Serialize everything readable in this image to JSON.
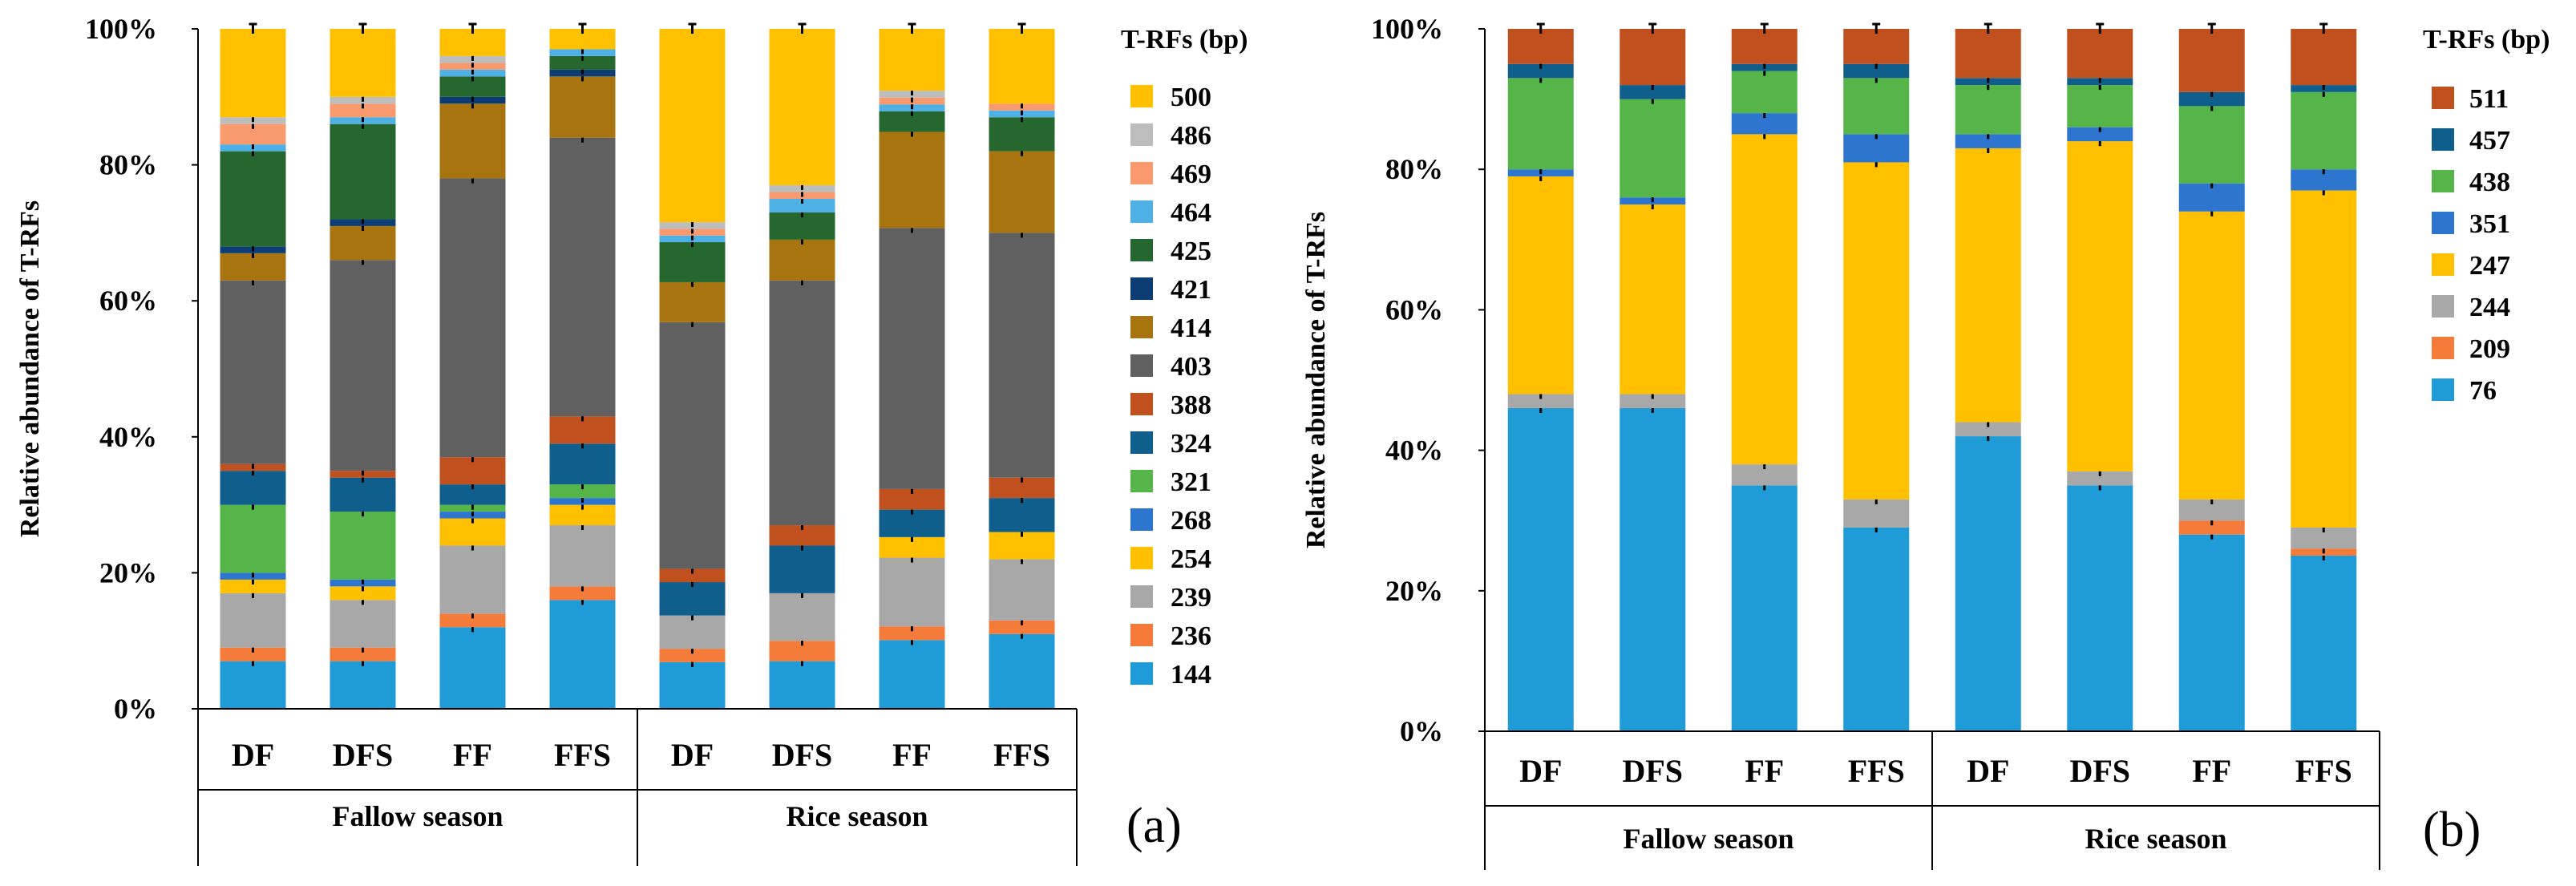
{
  "chart_data": [
    {
      "type": "stacked-bar",
      "panel_label": "(a)",
      "ylabel": "Relative abundance of T-RFs",
      "ytick_labels": [
        "0%",
        "20%",
        "40%",
        "60%",
        "80%",
        "100%"
      ],
      "ylim": [
        0,
        100
      ],
      "legend_title": "T-RFs (bp)",
      "categories": [
        "DF",
        "DFS",
        "FF",
        "FFS",
        "DF",
        "DFS",
        "FF",
        "FFS"
      ],
      "groups": [
        {
          "label": "Fallow season",
          "span": [
            0,
            3
          ]
        },
        {
          "label": "Rice season",
          "span": [
            4,
            7
          ]
        }
      ],
      "series": [
        {
          "name": "144",
          "color": "#1f9bd7",
          "values": [
            7,
            7,
            12,
            16,
            7,
            7,
            10,
            11
          ]
        },
        {
          "name": "236",
          "color": "#f47b3a",
          "values": [
            2,
            2,
            2,
            2,
            2,
            3,
            2,
            2
          ]
        },
        {
          "name": "239",
          "color": "#a8a8a8",
          "values": [
            8,
            7,
            10,
            9,
            5,
            7,
            10,
            9
          ]
        },
        {
          "name": "254",
          "color": "#ffc000",
          "values": [
            2,
            2,
            4,
            3,
            0,
            0,
            3,
            4
          ]
        },
        {
          "name": "268",
          "color": "#2e75d0",
          "values": [
            1,
            1,
            1,
            1,
            0,
            0,
            0,
            0
          ]
        },
        {
          "name": "321",
          "color": "#55b548",
          "values": [
            10,
            10,
            1,
            2,
            0,
            0,
            0,
            0
          ]
        },
        {
          "name": "324",
          "color": "#0f5e8c",
          "values": [
            5,
            5,
            3,
            6,
            5,
            7,
            4,
            5
          ]
        },
        {
          "name": "388",
          "color": "#c0501e",
          "values": [
            1,
            1,
            4,
            4,
            2,
            3,
            3,
            3
          ]
        },
        {
          "name": "403",
          "color": "#606060",
          "values": [
            27,
            31,
            41,
            41,
            37,
            36,
            38,
            36
          ]
        },
        {
          "name": "414",
          "color": "#a8740f",
          "values": [
            4,
            5,
            11,
            9,
            6,
            6,
            14,
            12
          ]
        },
        {
          "name": "421",
          "color": "#0d3d75",
          "values": [
            1,
            1,
            1,
            1,
            0,
            0,
            0,
            0
          ]
        },
        {
          "name": "425",
          "color": "#25672e",
          "values": [
            14,
            14,
            3,
            2,
            6,
            4,
            3,
            5
          ]
        },
        {
          "name": "464",
          "color": "#4fb0e6",
          "values": [
            1,
            1,
            1,
            1,
            1,
            2,
            1,
            1
          ]
        },
        {
          "name": "469",
          "color": "#f89a6e",
          "values": [
            3,
            2,
            1,
            0,
            1,
            1,
            1,
            1
          ]
        },
        {
          "name": "486",
          "color": "#bdbdbd",
          "values": [
            1,
            1,
            1,
            0,
            1,
            1,
            1,
            0
          ]
        },
        {
          "name": "500",
          "color": "#ffc000",
          "values": [
            13,
            10,
            4,
            3,
            29,
            23,
            9,
            11
          ]
        }
      ]
    },
    {
      "type": "stacked-bar",
      "panel_label": "(b)",
      "ylabel": "Relative abundance of T-RFs",
      "ytick_labels": [
        "0%",
        "20%",
        "40%",
        "60%",
        "80%",
        "100%"
      ],
      "ylim": [
        0,
        100
      ],
      "legend_title": "T-RFs (bp)",
      "categories": [
        "DF",
        "DFS",
        "FF",
        "FFS",
        "DF",
        "DFS",
        "FF",
        "FFS"
      ],
      "groups": [
        {
          "label": "Fallow season",
          "span": [
            0,
            3
          ]
        },
        {
          "label": "Rice season",
          "span": [
            4,
            7
          ]
        }
      ],
      "series": [
        {
          "name": "76",
          "color": "#1f9bd7",
          "values": [
            46,
            46,
            35,
            29,
            42,
            35,
            28,
            25
          ]
        },
        {
          "name": "209",
          "color": "#f47b3a",
          "values": [
            0,
            0,
            0,
            0,
            0,
            0,
            2,
            1
          ]
        },
        {
          "name": "244",
          "color": "#a8a8a8",
          "values": [
            2,
            2,
            3,
            4,
            2,
            2,
            3,
            3
          ]
        },
        {
          "name": "247",
          "color": "#ffc000",
          "values": [
            31,
            27,
            47,
            48,
            39,
            47,
            41,
            48
          ]
        },
        {
          "name": "351",
          "color": "#2e75d0",
          "values": [
            1,
            1,
            3,
            4,
            2,
            2,
            4,
            3
          ]
        },
        {
          "name": "438",
          "color": "#55b548",
          "values": [
            13,
            14,
            6,
            8,
            7,
            6,
            11,
            11
          ]
        },
        {
          "name": "457",
          "color": "#0f5e8c",
          "values": [
            2,
            2,
            1,
            2,
            1,
            1,
            2,
            1
          ]
        },
        {
          "name": "511",
          "color": "#c0501e",
          "values": [
            5,
            8,
            5,
            5,
            7,
            7,
            9,
            8
          ]
        }
      ]
    }
  ]
}
